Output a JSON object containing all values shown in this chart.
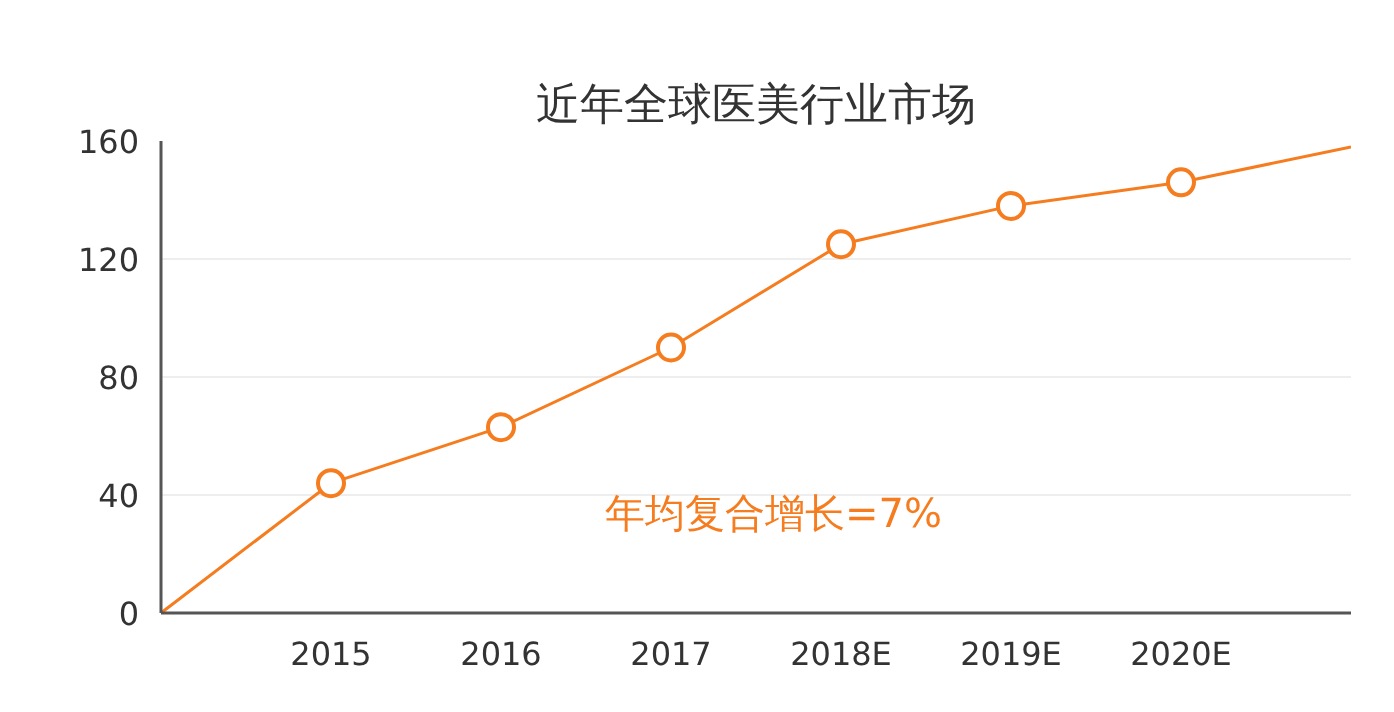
{
  "chart_data": {
    "type": "line",
    "title": "近年全球医美行业市场",
    "categories": [
      null,
      "2015",
      "2016",
      "2017",
      "2018E",
      "2019E",
      "2020E",
      null
    ],
    "series": [
      {
        "color": "#f57c1f",
        "values": [
          0,
          44,
          63,
          90,
          125,
          138,
          146,
          158
        ]
      }
    ],
    "ylim": [
      0,
      160
    ],
    "yticks": [
      0,
      40,
      80,
      120,
      160
    ],
    "grid": "y",
    "marker": "circle",
    "line_style": "solid",
    "annotations": [
      "年均复合增长=7%"
    ]
  }
}
